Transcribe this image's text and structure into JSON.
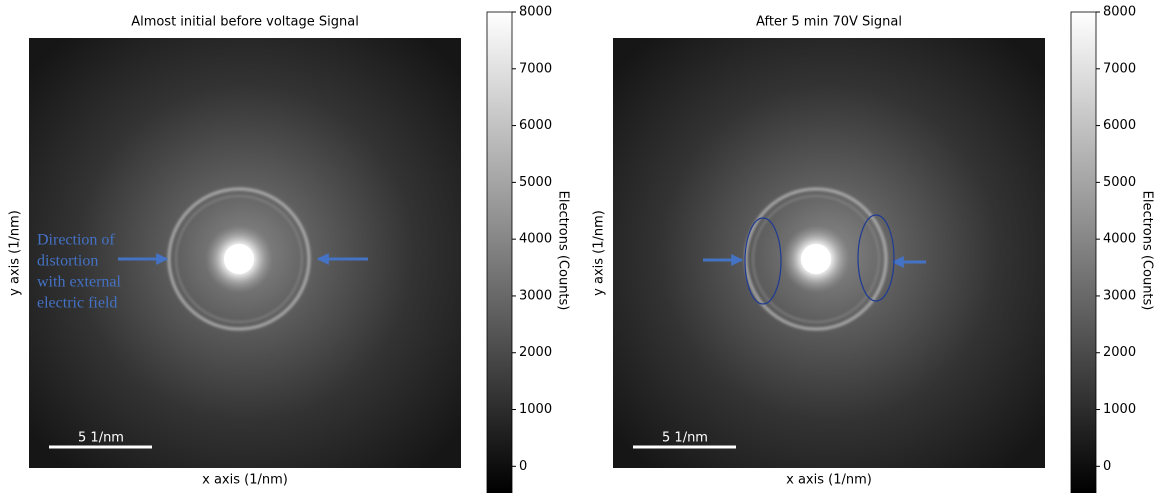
{
  "chart_data": [
    {
      "type": "image",
      "title": "Almost initial before voltage Signal",
      "xlabel": "x axis (1/nm)",
      "ylabel": "y axis (1/nm)",
      "colorbar_label": "Electrons (Counts)",
      "clim": [
        -470,
        8000
      ],
      "cticks": [
        0,
        1000,
        2000,
        3000,
        4000,
        5000,
        6000,
        7000,
        8000
      ],
      "scale_bar_label": "5 1/nm",
      "annotation_lines": [
        "Direction of",
        "distortion",
        "with external",
        "electric field"
      ]
    },
    {
      "type": "image",
      "title": "After 5 min 70V Signal",
      "xlabel": "x axis (1/nm)",
      "ylabel": "y axis (1/nm)",
      "colorbar_label": "Electrons (Counts)",
      "clim": [
        -470,
        8000
      ],
      "cticks": [
        0,
        1000,
        2000,
        3000,
        4000,
        5000,
        6000,
        7000,
        8000
      ],
      "scale_bar_label": "5 1/nm"
    }
  ]
}
